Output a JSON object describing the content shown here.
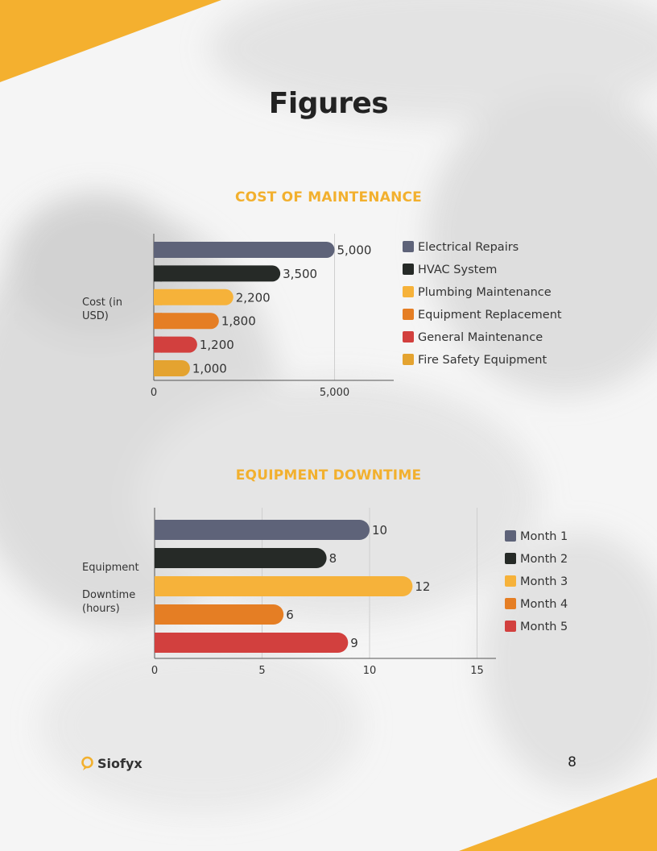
{
  "page": {
    "title": "Figures",
    "number": "8"
  },
  "brand": {
    "name": "Siofyx",
    "accent": "#f2b02e"
  },
  "charts": [
    {
      "section_title": "COST OF MAINTENANCE",
      "ylabel_lines": [
        "Cost (in",
        "USD)"
      ],
      "chart_data": {
        "type": "bar",
        "orientation": "horizontal",
        "title": "COST OF MAINTENANCE",
        "ylabel": "Cost (in USD)",
        "xlim": [
          0,
          6000
        ],
        "xticks": [
          0,
          5000
        ],
        "tick_labels": [
          "0",
          "5,000"
        ],
        "grid": true,
        "legend": "right",
        "series": [
          {
            "name": "Electrical Repairs",
            "value": 5000,
            "label": "5,000",
            "color": "#5e6379"
          },
          {
            "name": "HVAC System",
            "value": 3500,
            "label": "3,500",
            "color": "#262a27"
          },
          {
            "name": "Plumbing Maintenance",
            "value": 2200,
            "label": "2,200",
            "color": "#f6b23a"
          },
          {
            "name": "Equipment Replacement",
            "value": 1800,
            "label": "1,800",
            "color": "#e57e24"
          },
          {
            "name": "General Maintenance",
            "value": 1200,
            "label": "1,200",
            "color": "#d2403e"
          },
          {
            "name": "Fire Safety Equipment",
            "value": 1000,
            "label": "1,000",
            "color": "#e4a330"
          }
        ]
      }
    },
    {
      "section_title": "EQUIPMENT DOWNTIME",
      "ylabel_lines": [
        "Equipment",
        "",
        "Downtime",
        "(hours)"
      ],
      "chart_data": {
        "type": "bar",
        "orientation": "horizontal",
        "title": "EQUIPMENT DOWNTIME",
        "ylabel": "Equipment Downtime (hours)",
        "xlim": [
          0,
          15.5
        ],
        "xticks": [
          0,
          5,
          10,
          15
        ],
        "tick_labels": [
          "0",
          "5",
          "10",
          "15"
        ],
        "grid": true,
        "legend": "right",
        "series": [
          {
            "name": "Month 1",
            "value": 10,
            "label": "10",
            "color": "#5e6379"
          },
          {
            "name": "Month 2",
            "value": 8,
            "label": "8",
            "color": "#262a27"
          },
          {
            "name": "Month 3",
            "value": 12,
            "label": "12",
            "color": "#f6b23a"
          },
          {
            "name": "Month 4",
            "value": 6,
            "label": "6",
            "color": "#e57e24"
          },
          {
            "name": "Month 5",
            "value": 9,
            "label": "9",
            "color": "#d2403e"
          }
        ]
      }
    }
  ]
}
